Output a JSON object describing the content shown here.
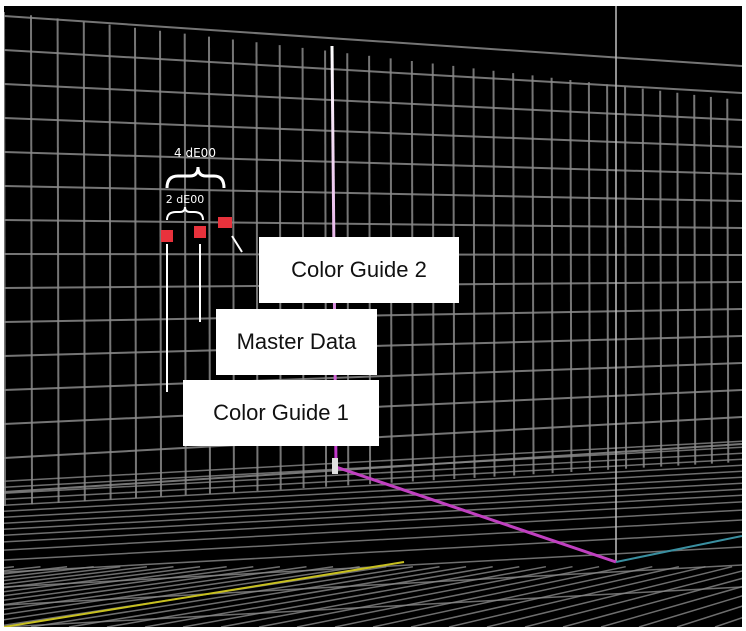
{
  "labels": {
    "color_guide_1": "Color Guide 1",
    "color_guide_2": "Color Guide 2",
    "master_data": "Master Data"
  },
  "brackets": {
    "small": "2 dE00",
    "large": "4 dE00"
  },
  "colors": {
    "background": "#000000",
    "grid": "#8a8a8a",
    "sample_marker": "#e8323c",
    "vertical_axis": "#d060d8",
    "floor_axis": "#c040c0",
    "yellow_axis": "#c8c020",
    "teal_axis": "#3a8fa0"
  }
}
